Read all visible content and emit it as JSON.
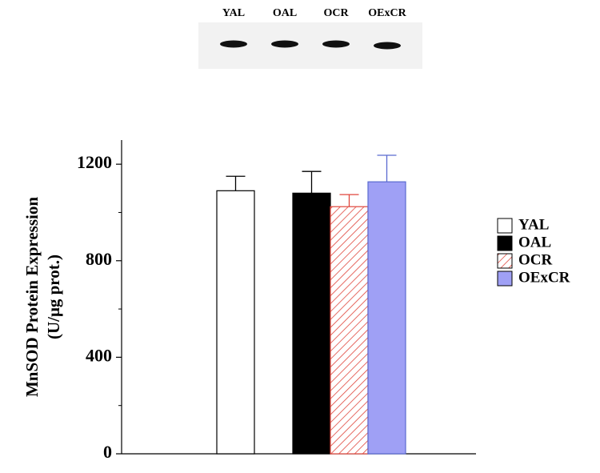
{
  "chart_data": {
    "type": "bar",
    "blot_lanes": [
      "YAL",
      "OAL",
      "OCR",
      "OExCR"
    ],
    "ylabel": [
      "MnSOD Protein Expression",
      "(U/μg prot.)"
    ],
    "categories": [
      "YAL",
      "OAL",
      "OCR",
      "OExCR"
    ],
    "values": [
      1090,
      1080,
      1024,
      1127
    ],
    "errors": [
      60,
      90,
      50,
      110
    ],
    "colors": [
      "#ffffff",
      "#000000",
      "#ffffff",
      "#9fa0f5"
    ],
    "hatch": [
      false,
      false,
      true,
      false
    ],
    "edge_colors": [
      "#000000",
      "#000000",
      "#e0463c",
      "#5a6ad0"
    ],
    "ylim": [
      0,
      1300
    ],
    "yticks": [
      0,
      400,
      800,
      1200
    ],
    "minor_yticks": [
      200,
      600,
      1000
    ],
    "legend": "right"
  }
}
